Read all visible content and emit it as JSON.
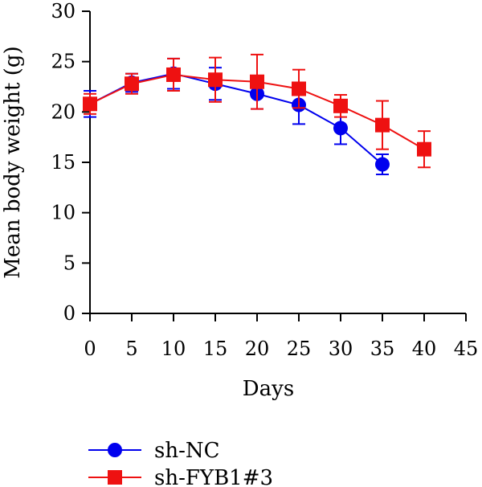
{
  "chart_data": {
    "type": "line",
    "title": "",
    "xlabel": "Days",
    "ylabel": "Mean body weight (g)",
    "xlim": [
      0,
      45
    ],
    "ylim": [
      0,
      30
    ],
    "xticks": [
      0,
      5,
      10,
      15,
      20,
      25,
      30,
      35,
      40,
      45
    ],
    "yticks": [
      0,
      5,
      10,
      15,
      20,
      25,
      30
    ],
    "grid": false,
    "legend_position": "bottom-left",
    "series": [
      {
        "name": "sh-NC",
        "color": "#0000ee",
        "marker": "circle",
        "x": [
          0,
          5,
          10,
          15,
          20,
          25,
          30,
          35
        ],
        "y": [
          20.8,
          22.9,
          23.8,
          22.8,
          21.8,
          20.7,
          18.4,
          14.8
        ],
        "error": [
          1.3,
          0.9,
          1.5,
          1.6,
          1.5,
          1.9,
          1.6,
          1.0
        ]
      },
      {
        "name": "sh-FYB1#3",
        "color": "#ee1111",
        "marker": "square",
        "x": [
          0,
          5,
          10,
          15,
          20,
          25,
          30,
          35,
          40
        ],
        "y": [
          20.8,
          22.8,
          23.7,
          23.2,
          23.0,
          22.3,
          20.6,
          18.7,
          16.3
        ],
        "error": [
          1.0,
          1.0,
          1.6,
          2.2,
          2.7,
          1.9,
          1.1,
          2.4,
          1.8
        ]
      }
    ]
  }
}
